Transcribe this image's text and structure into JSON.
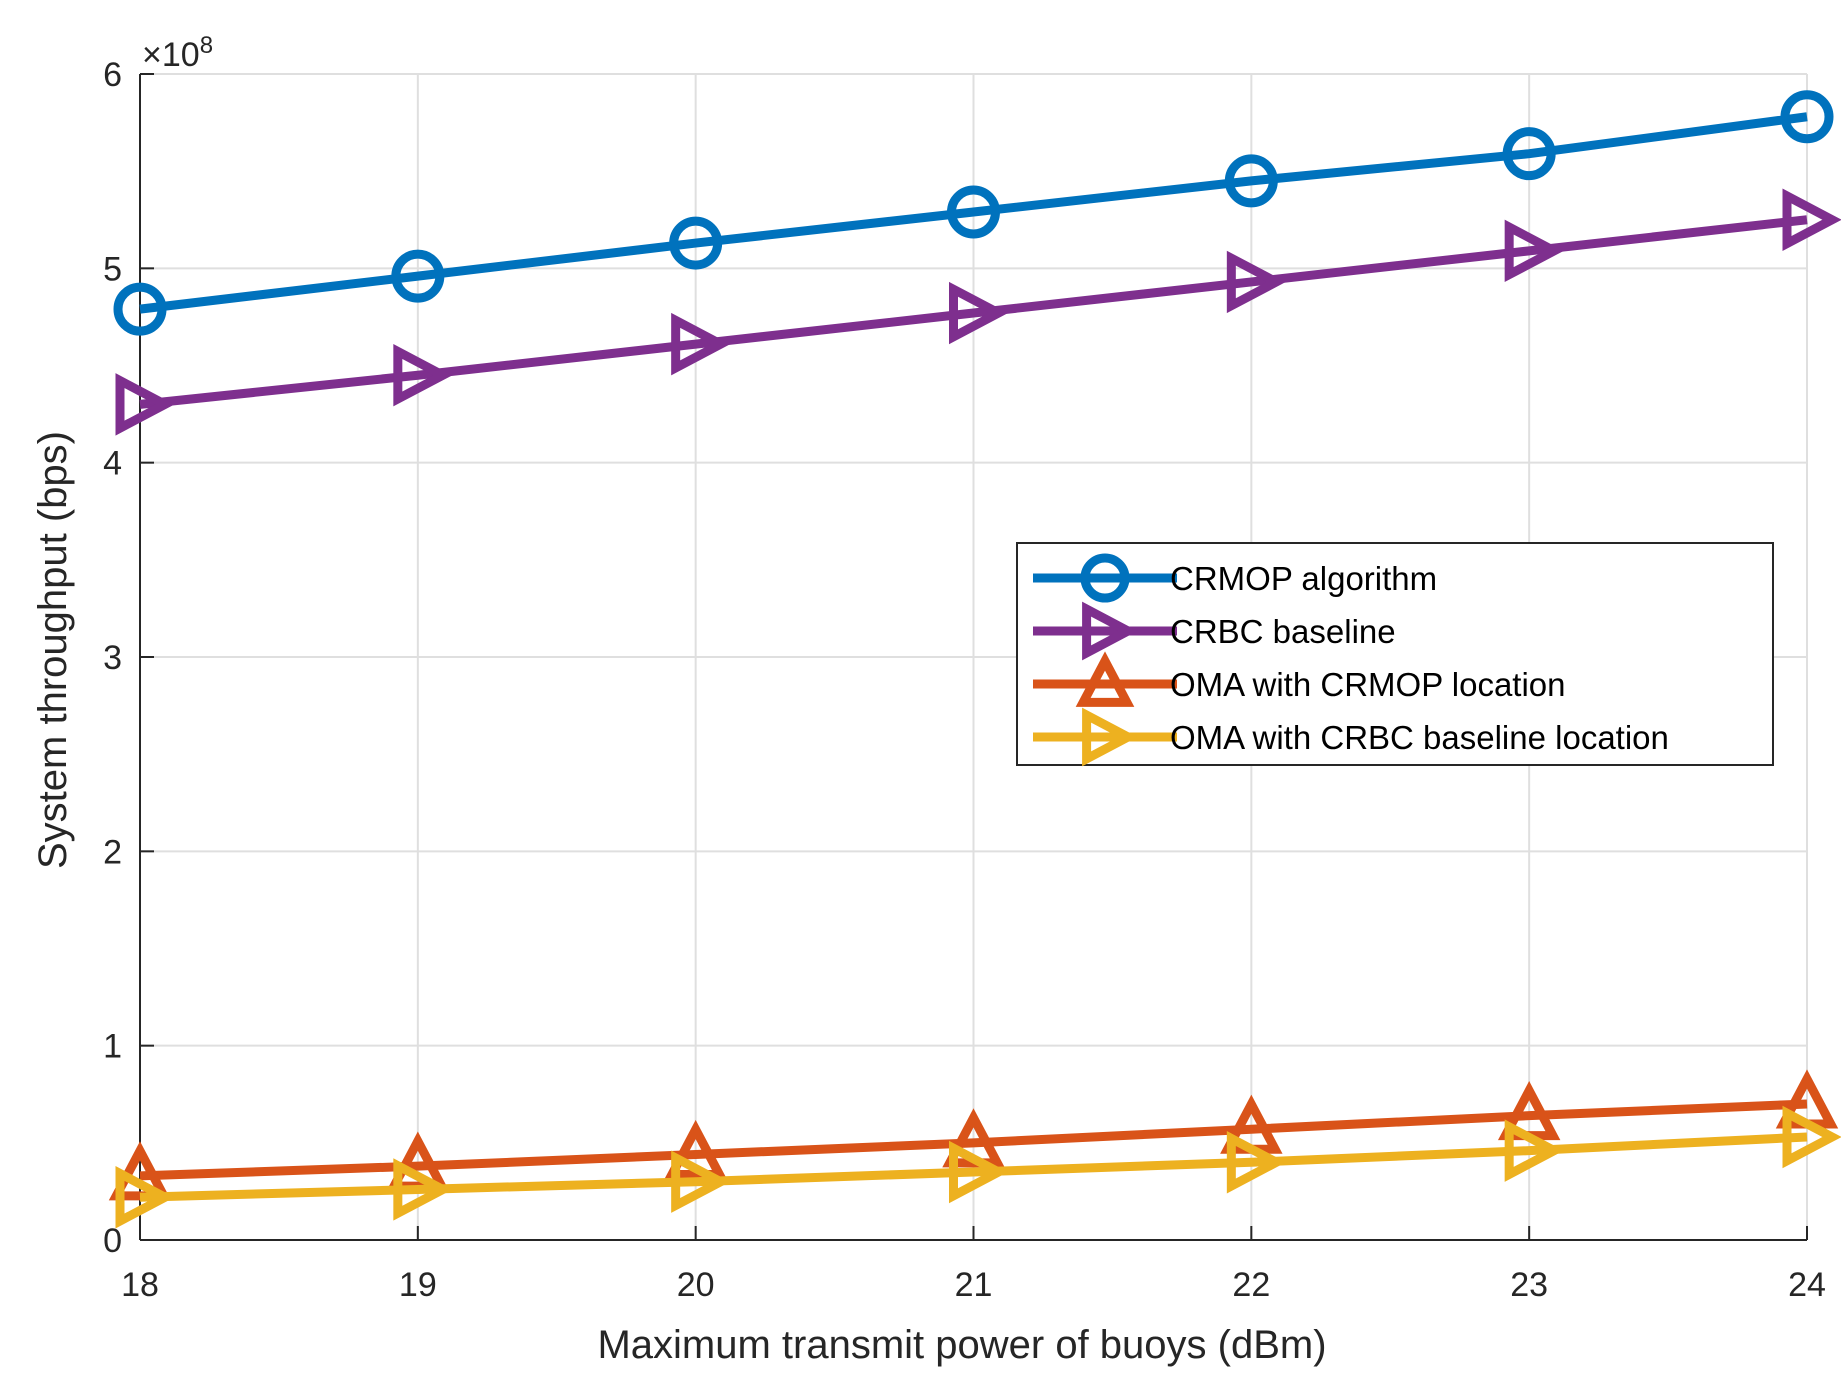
{
  "chart_data": {
    "type": "line",
    "title": "",
    "xlabel": "Maximum transmit power of buoys (dBm)",
    "ylabel": "System throughput (bps)",
    "x": [
      18,
      19,
      20,
      21,
      22,
      23,
      24
    ],
    "xticks": [
      "18",
      "19",
      "20",
      "21",
      "22",
      "23",
      "24"
    ],
    "yticks": [
      "0",
      "1",
      "2",
      "3",
      "4",
      "5",
      "6"
    ],
    "xlim": [
      18,
      24
    ],
    "ylim": [
      0,
      6
    ],
    "y_multiplier_base": "×10",
    "y_multiplier_exp": "8",
    "grid": true,
    "legend_position": "right-middle",
    "series": [
      {
        "name": "CRMOP algorithm",
        "color": "#0072BD",
        "marker": "circle",
        "values": [
          4.79,
          4.96,
          5.13,
          5.29,
          5.45,
          5.59,
          5.78
        ]
      },
      {
        "name": "CRBC baseline",
        "color": "#7E2F8E",
        "marker": "triangle-right",
        "values": [
          4.3,
          4.45,
          4.61,
          4.77,
          4.93,
          5.09,
          5.25
        ]
      },
      {
        "name": "OMA with CRMOP location",
        "color": "#D95319",
        "marker": "triangle-up",
        "values": [
          0.33,
          0.38,
          0.44,
          0.5,
          0.57,
          0.64,
          0.7
        ]
      },
      {
        "name": "OMA with CRBC baseline location",
        "color": "#EDB120",
        "marker": "triangle-right",
        "values": [
          0.22,
          0.26,
          0.3,
          0.35,
          0.4,
          0.46,
          0.53
        ]
      }
    ]
  }
}
